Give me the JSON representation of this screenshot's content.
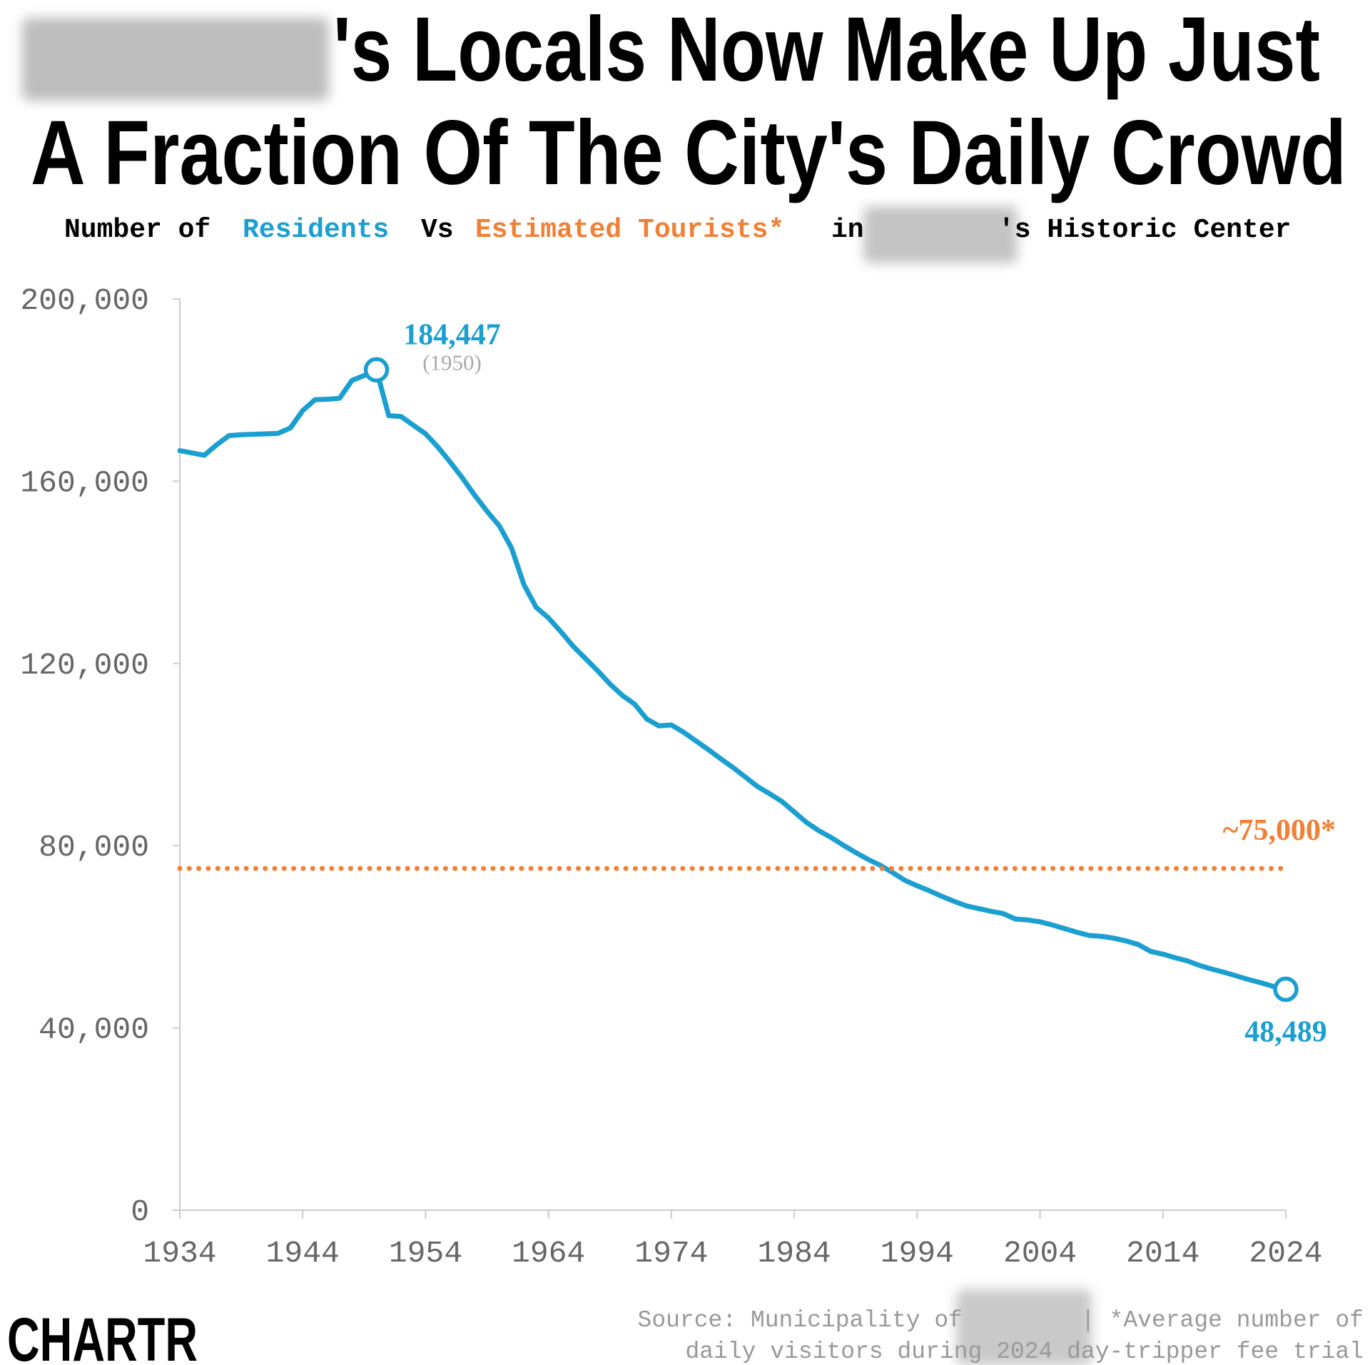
{
  "chart_data": {
    "type": "line",
    "title": [
      "'s Locals Now Make Up Just",
      "A Fraction Of The City's Daily Crowd"
    ],
    "subtitle": {
      "before": "Number of",
      "between": "Vs",
      "after_series": "in",
      "end": "'s Historic Center"
    },
    "xlim": [
      1934,
      2024
    ],
    "xticks": [
      1934,
      1944,
      1954,
      1964,
      1974,
      1984,
      1994,
      2004,
      2014,
      2024
    ],
    "ylim": [
      0,
      200000
    ],
    "yticks": [
      0,
      {
        "value": 40000,
        "label": "40,000"
      },
      {
        "value": 80000,
        "label": "80,000"
      },
      {
        "value": 120000,
        "label": "120,000"
      },
      {
        "value": 160000,
        "label": "160,000"
      },
      {
        "value": 200000,
        "label": "200,000"
      }
    ],
    "grid": false,
    "series": [
      {
        "name": "Residents",
        "color": "#1a9fd0",
        "style": "solid",
        "x": [
          1934,
          1935,
          1936,
          1937,
          1938,
          1939,
          1940,
          1941,
          1942,
          1943,
          1944,
          1945,
          1946,
          1947,
          1948,
          1949,
          1950,
          1951,
          1952,
          1953,
          1954,
          1955,
          1956,
          1957,
          1958,
          1959,
          1960,
          1961,
          1962,
          1963,
          1964,
          1965,
          1966,
          1967,
          1968,
          1969,
          1970,
          1971,
          1972,
          1973,
          1974,
          1975,
          1976,
          1977,
          1978,
          1979,
          1980,
          1981,
          1982,
          1983,
          1984,
          1985,
          1986,
          1987,
          1988,
          1989,
          1990,
          1991,
          1992,
          1993,
          1994,
          1995,
          1996,
          1997,
          1998,
          1999,
          2000,
          2001,
          2002,
          2003,
          2004,
          2005,
          2006,
          2007,
          2008,
          2009,
          2010,
          2011,
          2012,
          2013,
          2014,
          2015,
          2016,
          2017,
          2018,
          2019,
          2020,
          2021,
          2022,
          2023,
          2024
        ],
        "values": [
          166700,
          166200,
          165700,
          168000,
          170000,
          170200,
          170300,
          170400,
          170500,
          171700,
          175500,
          177900,
          178000,
          178200,
          182100,
          183200,
          184447,
          174400,
          174200,
          172300,
          170400,
          167500,
          164200,
          160700,
          156900,
          153400,
          150200,
          145300,
          137300,
          132300,
          130000,
          127000,
          123800,
          121100,
          118400,
          115500,
          113000,
          111100,
          107800,
          106300,
          106500,
          104900,
          103000,
          101100,
          99100,
          97200,
          95100,
          93000,
          91400,
          89700,
          87400,
          85100,
          83300,
          81800,
          80100,
          78500,
          77000,
          75700,
          74100,
          72400,
          71200,
          70100,
          68900,
          67800,
          66800,
          66200,
          65600,
          65100,
          63900,
          63700,
          63300,
          62600,
          61800,
          61000,
          60300,
          60100,
          59700,
          59100,
          58300,
          56800,
          56200,
          55400,
          54700,
          53700,
          52900,
          52200,
          51400,
          50600,
          49900,
          49100,
          48489
        ],
        "value_labels": [
          null,
          null,
          null,
          null,
          null,
          null,
          null,
          null,
          null,
          null,
          null,
          null,
          null,
          null,
          null,
          null,
          "184,447",
          null,
          null,
          null,
          null,
          null,
          null,
          null,
          null,
          null,
          null,
          null,
          null,
          null,
          null,
          null,
          null,
          null,
          null,
          null,
          null,
          null,
          null,
          null,
          null,
          null,
          null,
          null,
          null,
          null,
          null,
          null,
          null,
          null,
          null,
          null,
          null,
          null,
          null,
          null,
          null,
          null,
          null,
          null,
          null,
          null,
          null,
          null,
          null,
          null,
          null,
          null,
          null,
          null,
          null,
          null,
          null,
          null,
          null,
          null,
          null,
          null,
          null,
          null,
          null,
          null,
          null,
          null,
          null,
          null,
          null,
          null,
          null,
          null,
          "48,489"
        ]
      },
      {
        "name": "Estimated Tourists*",
        "color": "#f08036",
        "style": "dotted",
        "x": [
          1934,
          2024
        ],
        "values": [
          75000,
          75000
        ],
        "value_labels": [
          null,
          "~75,000*"
        ]
      }
    ],
    "peak_note": "(1950)",
    "source": {
      "prefix": "Source: Municipality of",
      "note_line1": "| *Average number of",
      "note_line2": "daily visitors during 2024 day-tripper fee trial"
    },
    "logo": "CHARTR"
  }
}
